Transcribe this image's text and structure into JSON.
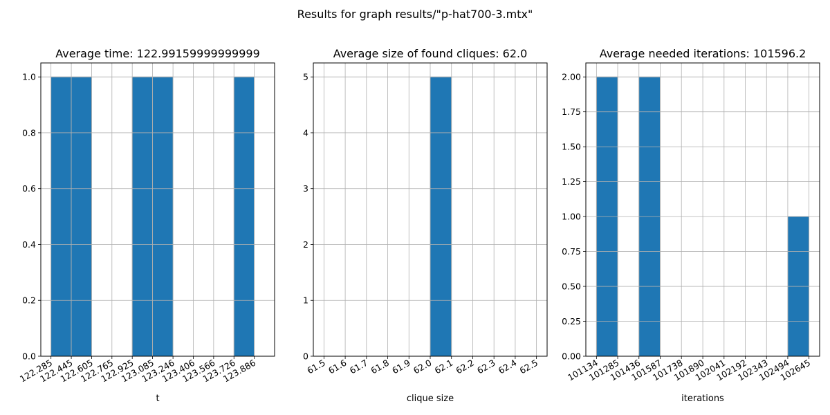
{
  "figure": {
    "suptitle": "Results for graph results/\"p-hat700-3.mtx\""
  },
  "colors": {
    "bar": "#1f77b4",
    "bar_edge": "#a0a0a0",
    "grid": "#b0b0b0"
  },
  "chart_data": [
    {
      "type": "bar",
      "title": "Average time: 122.99159999999999",
      "xlabel": "t",
      "ylabel": "",
      "grid": true,
      "xlim": [
        122.205,
        124.046
      ],
      "ylim": [
        0,
        1.05
      ],
      "x_ticks": [
        122.285,
        122.445,
        122.605,
        122.765,
        122.925,
        123.085,
        123.246,
        123.406,
        123.566,
        123.726,
        123.886
      ],
      "x_tick_labels": [
        "122.285",
        "122.445",
        "122.605",
        "122.765",
        "122.925",
        "123.085",
        "123.246",
        "123.406",
        "123.566",
        "123.726",
        "123.886"
      ],
      "y_ticks": [
        0,
        0.2,
        0.4,
        0.6,
        0.8,
        1.0
      ],
      "y_tick_labels": [
        "0.0",
        "0.2",
        "0.4",
        "0.6",
        "0.8",
        "1.0"
      ],
      "bins": [
        122.285,
        122.445,
        122.605,
        122.765,
        122.925,
        123.085,
        123.246,
        123.406,
        123.566,
        123.726,
        123.886
      ],
      "counts": [
        1,
        1,
        0,
        0,
        1,
        1,
        0,
        0,
        0,
        1
      ]
    },
    {
      "type": "bar",
      "title": "Average size of found cliques: 62.0",
      "xlabel": "clique size",
      "ylabel": "",
      "grid": true,
      "xlim": [
        61.45,
        62.55
      ],
      "ylim": [
        0,
        5.25
      ],
      "x_ticks": [
        61.5,
        61.6,
        61.7,
        61.8,
        61.9,
        62.0,
        62.1,
        62.2,
        62.3,
        62.4,
        62.5
      ],
      "x_tick_labels": [
        "61.5",
        "61.6",
        "61.7",
        "61.8",
        "61.9",
        "62.0",
        "62.1",
        "62.2",
        "62.3",
        "62.4",
        "62.5"
      ],
      "y_ticks": [
        0,
        1,
        2,
        3,
        4,
        5
      ],
      "y_tick_labels": [
        "0",
        "1",
        "2",
        "3",
        "4",
        "5"
      ],
      "bins": [
        61.5,
        61.6,
        61.7,
        61.8,
        61.9,
        62.0,
        62.1,
        62.2,
        62.3,
        62.4,
        62.5
      ],
      "counts": [
        0,
        0,
        0,
        0,
        0,
        5,
        0,
        0,
        0,
        0
      ]
    },
    {
      "type": "bar",
      "title": "Average needed iterations: 101596.2",
      "xlabel": "iterations",
      "ylabel": "",
      "grid": true,
      "xlim": [
        101058.5,
        102720.5
      ],
      "ylim": [
        0,
        2.1
      ],
      "x_ticks": [
        101134,
        101285,
        101436,
        101587,
        101738,
        101890,
        102041,
        102192,
        102343,
        102494,
        102645
      ],
      "x_tick_labels": [
        "101134",
        "101285",
        "101436",
        "101587",
        "101738",
        "101890",
        "102041",
        "102192",
        "102343",
        "102494",
        "102645"
      ],
      "y_ticks": [
        0,
        0.25,
        0.5,
        0.75,
        1.0,
        1.25,
        1.5,
        1.75,
        2.0
      ],
      "y_tick_labels": [
        "0.00",
        "0.25",
        "0.50",
        "0.75",
        "1.00",
        "1.25",
        "1.50",
        "1.75",
        "2.00"
      ],
      "bins": [
        101134,
        101285,
        101436,
        101587,
        101738,
        101890,
        102041,
        102192,
        102343,
        102494,
        102645
      ],
      "counts": [
        2,
        0,
        2,
        0,
        0,
        0,
        0,
        0,
        0,
        1
      ]
    }
  ]
}
